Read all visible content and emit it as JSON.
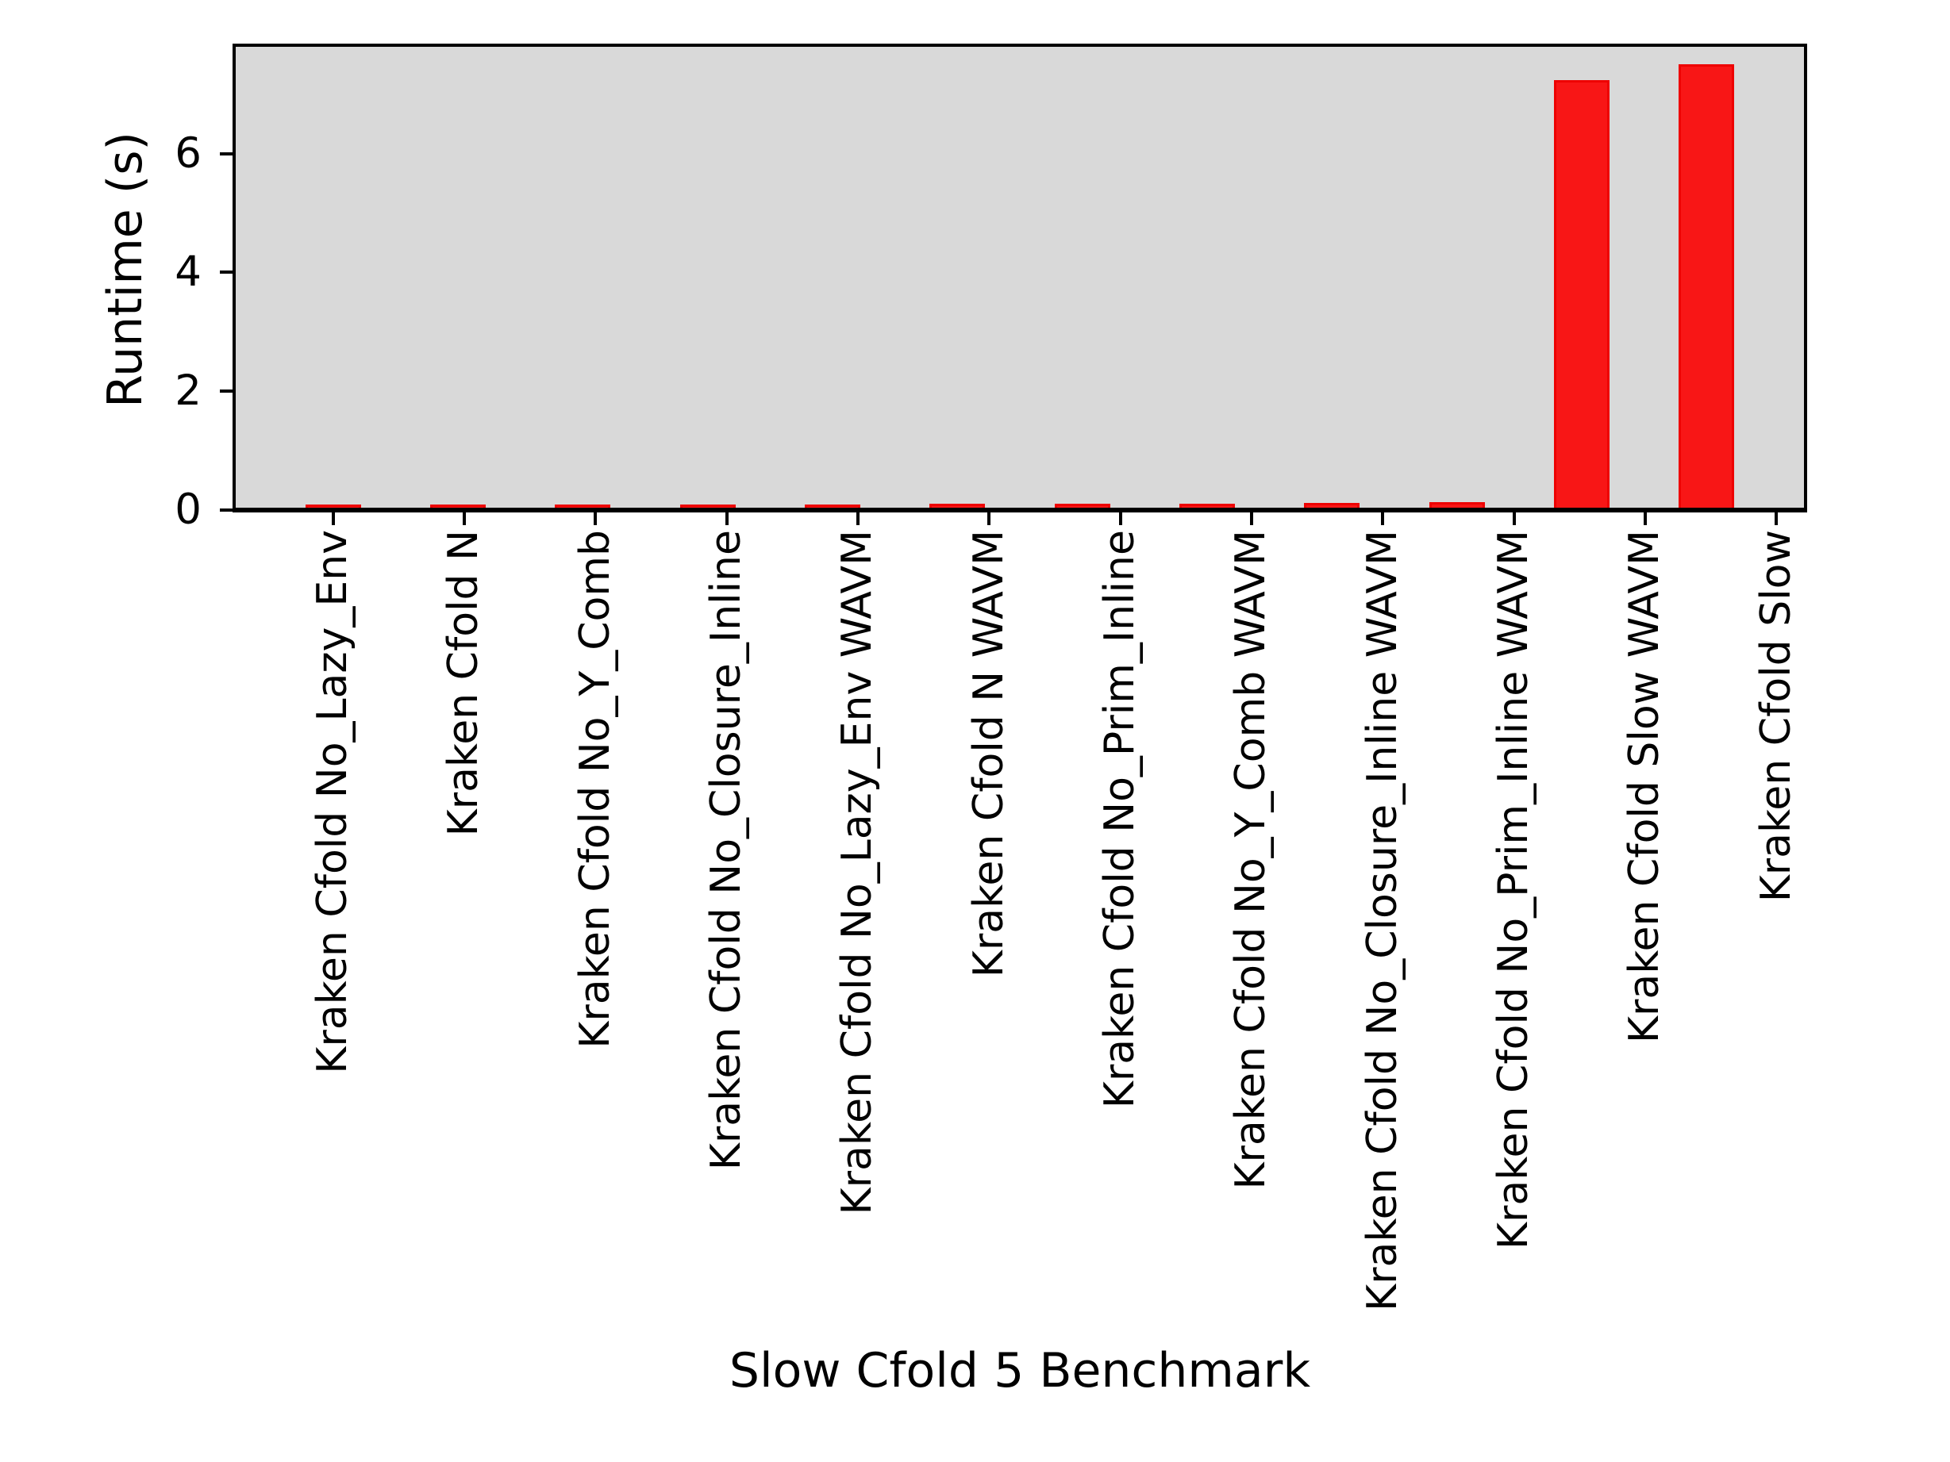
{
  "chart_data": {
    "type": "bar",
    "xlabel": "Slow Cfold 5 Benchmark",
    "ylabel": "Runtime (s)",
    "categories": [
      "Kraken Cfold No_Lazy_Env",
      "Kraken Cfold N",
      "Kraken Cfold No_Y_Comb",
      "Kraken Cfold No_Closure_Inline",
      "Kraken Cfold No_Lazy_Env WAVM",
      "Kraken Cfold N WAVM",
      "Kraken Cfold No_Prim_Inline",
      "Kraken Cfold No_Y_Comb WAVM",
      "Kraken Cfold No_Closure_Inline WAVM",
      "Kraken Cfold No_Prim_Inline WAVM",
      "Kraken Cfold Slow WAVM",
      "Kraken Cfold Slow"
    ],
    "values": [
      0.06,
      0.06,
      0.05,
      0.06,
      0.06,
      0.07,
      0.07,
      0.07,
      0.08,
      0.1,
      7.24,
      7.5
    ],
    "yticks": [
      0,
      2,
      4,
      6
    ],
    "ylim": [
      0,
      7.875
    ],
    "grid": false,
    "legend_position": "upper-right",
    "legend_entries": [],
    "colors": {
      "bar_fill": "#f81616",
      "bar_edge": "#ee0202",
      "plot_background": "#d9d9d9",
      "figure_background": "#ffffff",
      "axis": "#000000"
    }
  }
}
